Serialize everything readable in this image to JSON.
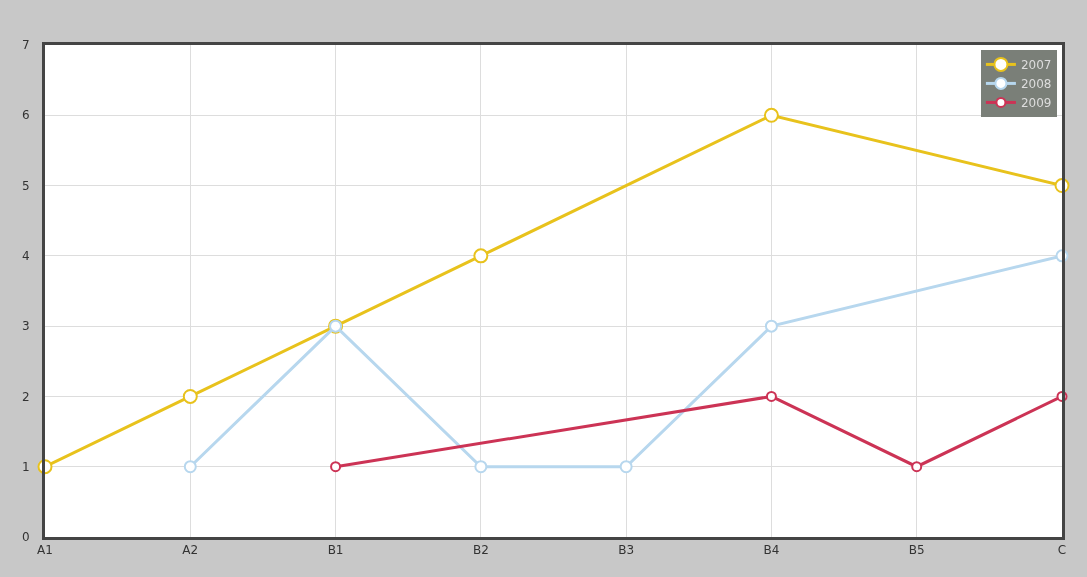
{
  "chart_data": {
    "type": "line",
    "categories": [
      "A1",
      "A2",
      "B1",
      "B2",
      "B3",
      "B4",
      "B5",
      "C"
    ],
    "series": [
      {
        "name": "2007",
        "color": "#e8c21c",
        "values": [
          1,
          2,
          3,
          4,
          null,
          6,
          null,
          5
        ]
      },
      {
        "name": "2008",
        "color": "#b7d7ee",
        "values": [
          null,
          1,
          3,
          1,
          1,
          3,
          null,
          4
        ]
      },
      {
        "name": "2009",
        "color": "#cc3355",
        "values": [
          null,
          null,
          1,
          null,
          null,
          2,
          1,
          2
        ]
      }
    ],
    "ylim": [
      0,
      7
    ],
    "yticks": [
      0,
      1,
      2,
      3,
      4,
      5,
      6,
      7
    ],
    "grid": true,
    "legend": "top right",
    "marker": "circle",
    "line_style": "solid"
  }
}
